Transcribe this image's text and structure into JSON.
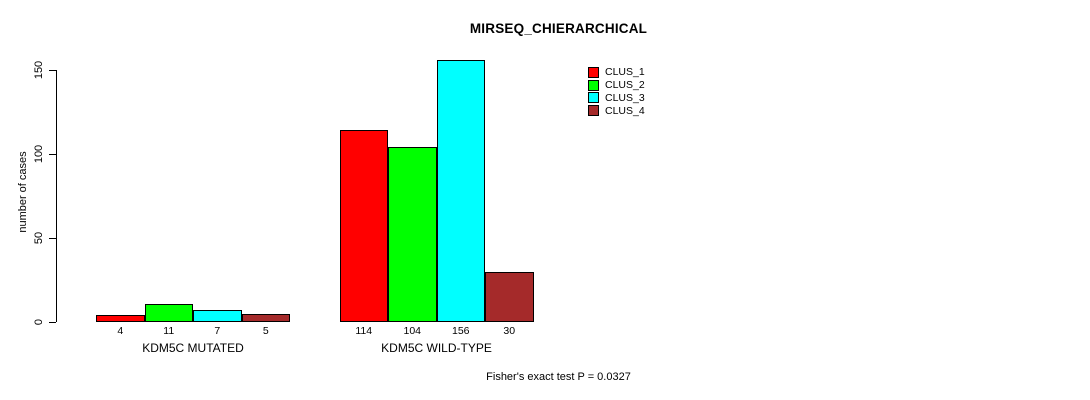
{
  "chart_data": {
    "type": "bar",
    "title": "MIRSEQ_CHIERARCHICAL",
    "ylabel": "number of cases",
    "xlabel": "",
    "ylim": [
      0,
      150
    ],
    "yticks": [
      0,
      50,
      100,
      150
    ],
    "grid": false,
    "legend_position": "top-right",
    "categories": [
      "KDM5C MUTATED",
      "KDM5C WILD-TYPE"
    ],
    "series": [
      {
        "name": "CLUS_1",
        "color": "#ff0000",
        "values": [
          4,
          114
        ]
      },
      {
        "name": "CLUS_2",
        "color": "#00ff00",
        "values": [
          11,
          104
        ]
      },
      {
        "name": "CLUS_3",
        "color": "#00ffff",
        "values": [
          7,
          156
        ]
      },
      {
        "name": "CLUS_4",
        "color": "#a52a2a",
        "values": [
          5,
          30
        ]
      }
    ],
    "bar_value_labels": [
      [
        "4",
        "11",
        "7",
        "5"
      ],
      [
        "114",
        "104",
        "156",
        "30"
      ]
    ],
    "annotation": "Fisher's exact test P = 0.0327"
  },
  "colors": {
    "background": "#ffffff",
    "axis": "#000000",
    "text": "#000000"
  }
}
